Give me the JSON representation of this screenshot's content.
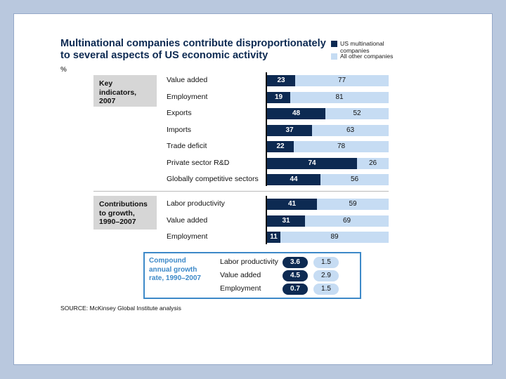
{
  "exhibit": {
    "title_line1": "Multinational companies contribute disproportionately",
    "title_line2": "to several aspects of US economic activity",
    "unit": "%",
    "source": "SOURCE: McKinsey Global Institute analysis"
  },
  "colors": {
    "us": "#0d2a52",
    "other": "#c6dcf3",
    "accent": "#3d89c8"
  },
  "chart_data": {
    "type": "bar",
    "orientation": "horizontal",
    "stacked": true,
    "title": "Multinational companies contribute disproportionately to several aspects of US economic activity",
    "unit": "%",
    "legend": [
      "US multinational companies",
      "All other companies"
    ],
    "groups": [
      {
        "label": "Key indicators, 2007",
        "label_line1": "Key indicators,",
        "label_line2": "2007",
        "categories": [
          "Value added",
          "Employment",
          "Exports",
          "Imports",
          "Trade deficit",
          "Private sector R&D",
          "Globally competitive sectors"
        ],
        "series": [
          {
            "name": "US multinational companies",
            "values": [
              23,
              19,
              48,
              37,
              22,
              74,
              44
            ]
          },
          {
            "name": "All other companies",
            "values": [
              77,
              81,
              52,
              63,
              78,
              26,
              56
            ]
          }
        ]
      },
      {
        "label": "Contributions to growth, 1990–2007",
        "label_line1": "Contributions",
        "label_line2": "to growth,",
        "label_line3": "1990–2007",
        "categories": [
          "Labor productivity",
          "Value added",
          "Employment"
        ],
        "series": [
          {
            "name": "US multinational companies",
            "values": [
              41,
              31,
              11
            ]
          },
          {
            "name": "All other companies",
            "values": [
              59,
              69,
              89
            ]
          }
        ]
      }
    ],
    "cagr": {
      "label_line1": "Compound",
      "label_line2": "annual growth",
      "label_line3": "rate, 1990–2007",
      "categories": [
        "Labor productivity",
        "Value added",
        "Employment"
      ],
      "us": [
        "3.6",
        "4.5",
        "0.7"
      ],
      "other": [
        "1.5",
        "2.9",
        "1.5"
      ]
    }
  }
}
